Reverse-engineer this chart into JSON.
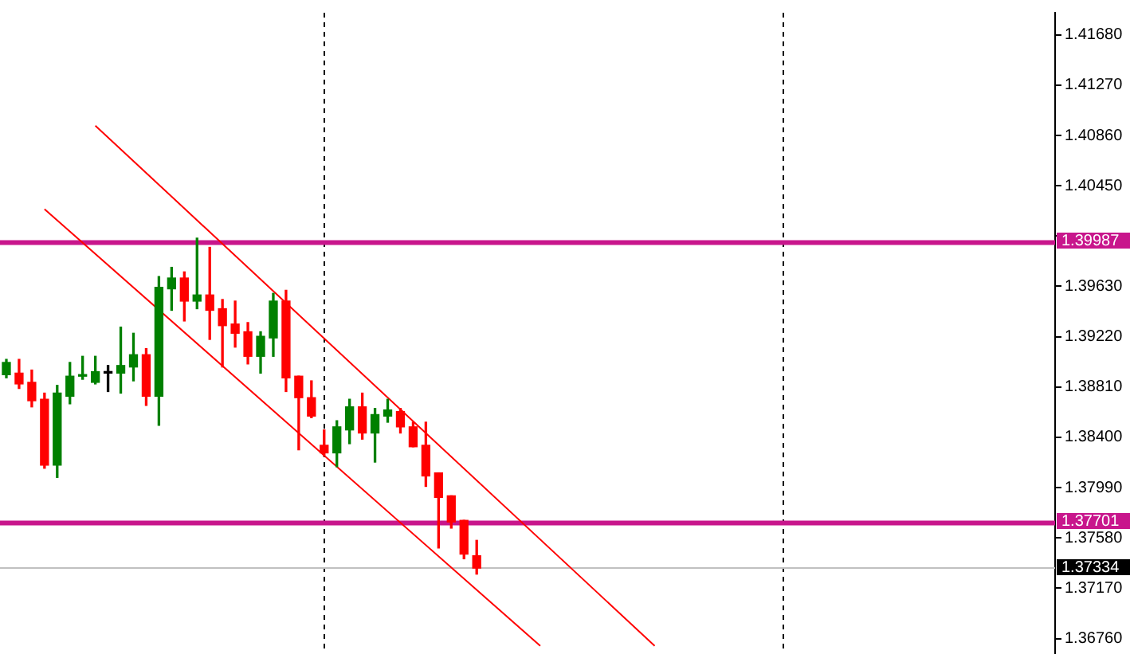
{
  "chart_data": {
    "type": "candlestick",
    "categories": [
      null,
      null,
      null,
      null,
      null,
      null,
      null,
      null,
      null,
      null,
      null,
      null,
      null,
      null,
      null,
      null,
      null,
      null,
      null,
      null,
      null,
      null,
      null,
      null,
      null,
      null,
      null,
      null,
      null,
      null,
      null,
      null,
      null,
      null,
      null,
      null,
      null,
      null,
      null,
      null,
      null,
      null,
      null,
      null,
      null,
      null,
      null,
      null,
      null,
      null,
      null,
      null,
      null,
      null,
      null,
      null,
      null,
      null,
      null,
      null,
      null,
      null,
      null,
      null,
      null,
      null,
      null,
      null,
      null,
      null,
      null,
      null,
      null,
      null,
      null,
      null,
      null,
      null,
      null,
      null,
      null,
      null,
      null
    ],
    "ohlc": [
      [
        1.3891,
        1.39035,
        1.38885,
        1.3901
      ],
      [
        1.38923,
        1.39035,
        1.38798,
        1.38835
      ],
      [
        1.38848,
        1.38948,
        1.38648,
        1.38698
      ],
      [
        1.3871,
        1.3876,
        1.38148,
        1.38173
      ],
      [
        1.38173,
        1.38823,
        1.38073,
        1.3876
      ],
      [
        1.38735,
        1.3901,
        1.38673,
        1.38898
      ],
      [
        1.38898,
        1.3906,
        1.38873,
        1.3891
      ],
      [
        1.38848,
        1.3906,
        1.38835,
        1.38935
      ],
      [
        1.38923,
        1.38985,
        1.38773,
        1.38923
      ],
      [
        1.38923,
        1.39298,
        1.3876,
        1.38985
      ],
      [
        1.38973,
        1.39248,
        1.3886,
        1.39073
      ],
      [
        1.39073,
        1.39123,
        1.3866,
        1.38735
      ],
      [
        1.38735,
        1.3971,
        1.38498,
        1.39623
      ],
      [
        1.3961,
        1.39785,
        1.39435,
        1.39698
      ],
      [
        1.39698,
        1.39748,
        1.39348,
        1.3951
      ],
      [
        1.3951,
        1.40023,
        1.39448,
        1.3956
      ],
      [
        1.3956,
        1.39948,
        1.39198,
        1.39435
      ],
      [
        1.39448,
        1.39523,
        1.38973,
        1.3931
      ],
      [
        1.39323,
        1.3951,
        1.39135,
        1.39248
      ],
      [
        1.3926,
        1.39335,
        1.38998,
        1.3906
      ],
      [
        1.3906,
        1.3926,
        1.38923,
        1.39223
      ],
      [
        1.3921,
        1.39573,
        1.3906,
        1.3951
      ],
      [
        1.3951,
        1.39598,
        1.38773,
        1.38885
      ],
      [
        1.38898,
        1.38898,
        1.38298,
        1.38723
      ],
      [
        1.38723,
        1.3886,
        1.3856,
        1.38573
      ],
      [
        1.38335,
        1.3846,
        1.38248,
        1.38273
      ],
      [
        1.38273,
        1.38535,
        1.3816,
        1.38485
      ],
      [
        1.3846,
        1.3871,
        1.38348,
        1.38648
      ],
      [
        1.38648,
        1.3876,
        1.38385,
        1.38435
      ],
      [
        1.38435,
        1.38635,
        1.38198,
        1.38585
      ],
      [
        1.38573,
        1.3871,
        1.38523,
        1.38623
      ],
      [
        1.3861,
        1.38635,
        1.38435,
        1.38485
      ],
      [
        1.38485,
        1.38523,
        1.38323,
        1.38323
      ],
      [
        1.38335,
        1.38523,
        1.38,
        1.38085
      ],
      [
        1.3811,
        1.3811,
        1.37498,
        1.3791
      ],
      [
        1.37923,
        1.37923,
        1.3766,
        1.3771
      ],
      [
        1.37723,
        1.37723,
        1.3741,
        1.37448
      ],
      [
        1.37435,
        1.3756,
        1.37285,
        1.37334
      ],
      null,
      null,
      null,
      null,
      null,
      null,
      null,
      null,
      null,
      null,
      null,
      null,
      null,
      null,
      null,
      null,
      null,
      null,
      null,
      null,
      null,
      null,
      null,
      null,
      null,
      null,
      null,
      null,
      null,
      null,
      null,
      null,
      null,
      null,
      null,
      null,
      null,
      null,
      null,
      null,
      null,
      null,
      null,
      null,
      null
    ],
    "colors": [
      "#008000",
      "#ff0000",
      "#ff0000",
      "#ff0000",
      "#008000",
      "#008000",
      "#008000",
      "#008000",
      "#000000",
      "#008000",
      "#008000",
      "#ff0000",
      "#008000",
      "#008000",
      "#ff0000",
      "#008000",
      "#ff0000",
      "#ff0000",
      "#ff0000",
      "#ff0000",
      "#008000",
      "#008000",
      "#ff0000",
      "#ff0000",
      "#ff0000",
      "#ff0000",
      "#008000",
      "#008000",
      "#ff0000",
      "#008000",
      "#008000",
      "#ff0000",
      "#ff0000",
      "#ff0000",
      "#ff0000",
      "#ff0000",
      "#ff0000",
      "#ff0000",
      null,
      null,
      null,
      null,
      null,
      null,
      null,
      null,
      null,
      null,
      null,
      null,
      null,
      null,
      null,
      null,
      null,
      null,
      null,
      null,
      null,
      null,
      null,
      null,
      null,
      null,
      null,
      null,
      null,
      null,
      null,
      null,
      null,
      null,
      null,
      null,
      null,
      null,
      null,
      null,
      null,
      null,
      null,
      null,
      null
    ],
    "series": [
      {
        "type": "line",
        "color": "#ff0000",
        "values": [
          null,
          null,
          null,
          null,
          null,
          null,
          null,
          1.4094,
          null,
          null,
          null,
          null,
          null,
          null,
          null,
          null,
          null,
          null,
          null,
          null,
          null,
          null,
          null,
          null,
          null,
          null,
          null,
          null,
          null,
          null,
          null,
          null,
          null,
          null,
          null,
          null,
          null,
          null,
          null,
          null,
          null,
          null,
          null,
          null,
          null,
          null,
          null,
          null,
          null,
          null,
          null,
          1.367,
          null,
          null,
          null,
          null,
          null,
          null,
          null,
          null,
          null,
          null,
          null,
          null,
          null,
          null,
          null,
          null,
          null,
          null,
          null,
          null,
          null,
          null,
          null,
          null,
          null,
          null,
          null,
          null,
          null,
          null,
          null
        ]
      },
      {
        "type": "line",
        "color": "#ff0000",
        "values": [
          null,
          null,
          null,
          1.4026,
          null,
          null,
          null,
          null,
          null,
          null,
          null,
          null,
          null,
          null,
          null,
          null,
          null,
          null,
          null,
          null,
          null,
          null,
          null,
          null,
          null,
          null,
          null,
          null,
          null,
          null,
          null,
          null,
          null,
          null,
          null,
          null,
          null,
          null,
          null,
          null,
          null,
          null,
          1.367,
          null,
          null,
          null,
          null,
          null,
          null,
          null,
          null,
          null,
          null,
          null,
          null,
          null,
          null,
          null,
          null,
          null,
          null,
          null,
          null,
          null,
          null,
          null,
          null,
          null,
          null,
          null,
          null,
          null,
          null,
          null,
          null,
          null,
          null,
          null,
          null,
          null,
          null,
          null,
          null
        ]
      }
    ],
    "ylim": [
      1.3664,
      1.4186
    ],
    "yticks": [
      {
        "value": 1.4168,
        "label": "1.41680"
      },
      {
        "value": 1.4127,
        "label": "1.41270"
      },
      {
        "value": 1.4086,
        "label": "1.40860"
      },
      {
        "value": 1.4045,
        "label": "1.40450"
      },
      {
        "value": 1.4004,
        "label": null
      },
      {
        "value": 1.3963,
        "label": "1.39630"
      },
      {
        "value": 1.3922,
        "label": "1.39220"
      },
      {
        "value": 1.3881,
        "label": "1.38810"
      },
      {
        "value": 1.384,
        "label": "1.38400"
      },
      {
        "value": 1.3799,
        "label": "1.37990"
      },
      {
        "value": 1.3758,
        "label": "1.37580"
      },
      {
        "value": 1.3717,
        "label": "1.37170"
      },
      {
        "value": 1.3676,
        "label": "1.36760"
      }
    ],
    "ref_lines": [
      {
        "axis": "y",
        "value": 1.39987,
        "label": "1.39987",
        "color": "#c8168c"
      },
      {
        "axis": "y",
        "value": 1.37701,
        "label": "1.37701",
        "color": "#c8168c"
      },
      {
        "axis": "y",
        "value": 1.37334,
        "label": "1.37334",
        "color": "#c0c0c0"
      }
    ],
    "legend": false
  }
}
